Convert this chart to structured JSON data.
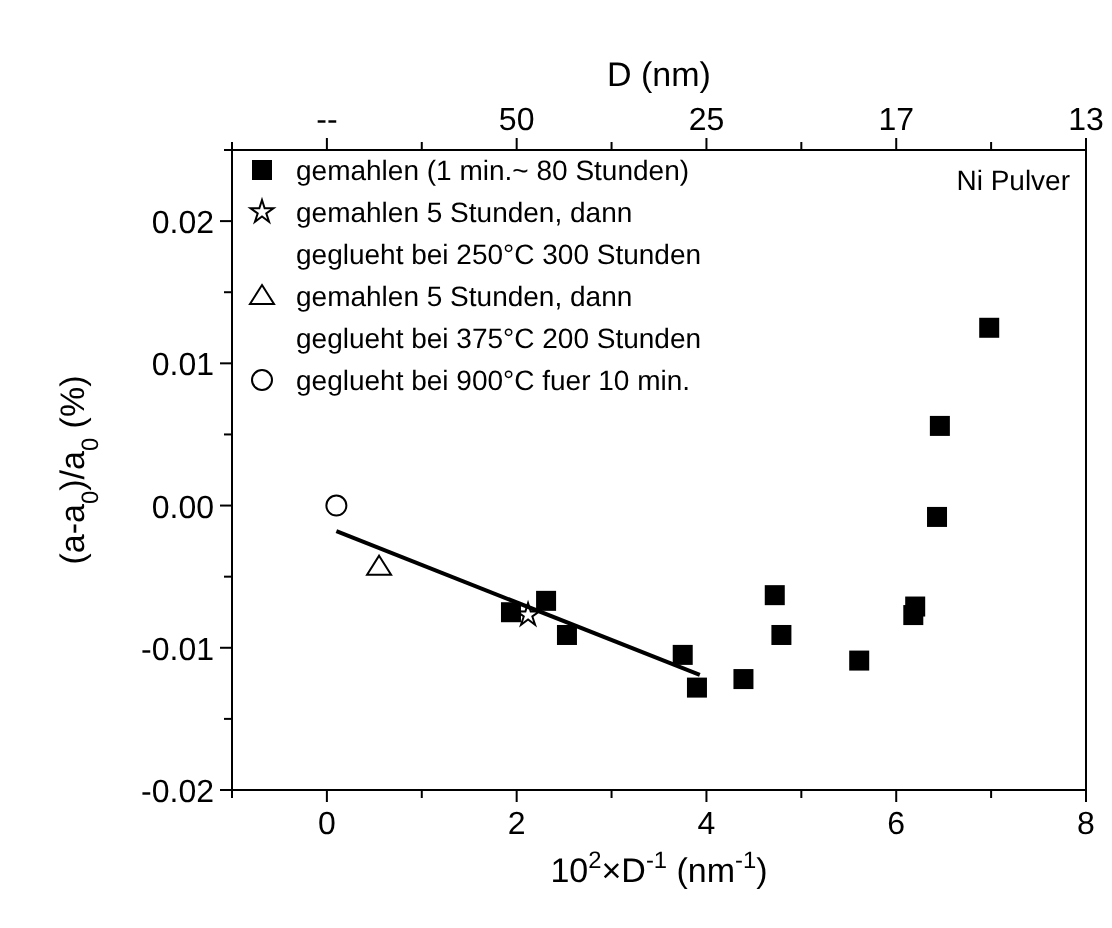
{
  "chart_data": {
    "type": "scatter",
    "xlabel": "10$^{2}$×D$^{-1}$ (nm$^{-1}$)",
    "ylabel": "(a-a$_{0}$)/a$_{0}$ (%)",
    "x2label": "D (nm)",
    "xlim": [
      -1,
      8
    ],
    "xticks": [
      {
        "value": -1,
        "label": null
      },
      0,
      {
        "value": 1,
        "label": null
      },
      2,
      {
        "value": 3,
        "label": null
      },
      4,
      {
        "value": 5,
        "label": null
      },
      6,
      {
        "value": 7,
        "label": null
      },
      8
    ],
    "ylim": [
      -0.02,
      0.025
    ],
    "yticks": [
      -0.02,
      {
        "value": -0.015,
        "label": null
      },
      -0.01,
      {
        "value": -0.005,
        "label": null
      },
      {
        "value": 0,
        "label": "0.00"
      },
      {
        "value": 0.005,
        "label": null
      },
      0.01,
      {
        "value": 0.015,
        "label": null
      },
      0.02,
      {
        "value": 0.025,
        "label": null
      }
    ],
    "grid": false,
    "legend": "top left",
    "annotations": [
      "Ni Pulver",
      "--",
      "50",
      "25",
      "17",
      "13"
    ],
    "series": [
      {
        "name": "gemahlen (1 min.~ 80 Stunden)",
        "color": "#000000",
        "marker": "square",
        "x": [
          1.94,
          2.31,
          2.53,
          3.75,
          3.9,
          4.39,
          4.72,
          4.79,
          5.61,
          6.2,
          6.18,
          6.43,
          6.46,
          6.98
        ],
        "values": [
          -0.0075,
          -0.0067,
          -0.0091,
          -0.0105,
          -0.0128,
          -0.0122,
          -0.0063,
          -0.0091,
          -0.0109,
          -0.0071,
          -0.0077,
          -0.0008,
          0.0056,
          0.0125
        ]
      },
      {
        "name": "gemahlen 5 Stunden, dann\ngeglueht bei 250°C 300 Stunden",
        "color": "#000000",
        "marker": "star",
        "x": [
          2.12
        ],
        "values": [
          -0.0077
        ]
      },
      {
        "name": "gemahlen  5 Stunden, dann\ngeglueht bei 375°C 200 Stunden",
        "color": "#000000",
        "marker": "triangle",
        "x": [
          0.55
        ],
        "values": [
          -0.0043
        ]
      },
      {
        "name": "geglueht bei 900°C fuer 10 min.",
        "color": "#000000",
        "marker": "circle",
        "x": [
          0.1
        ],
        "values": [
          0.0
        ]
      },
      {
        "type": "line",
        "color": "#000000",
        "line_style": "solid",
        "x": [
          0.1,
          3.93
        ],
        "values": [
          -0.0018,
          -0.0119
        ]
      }
    ]
  }
}
